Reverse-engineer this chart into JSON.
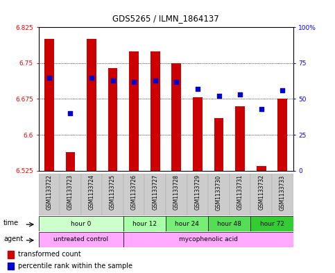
{
  "title": "GDS5265 / ILMN_1864137",
  "samples": [
    "GSM1133722",
    "GSM1133723",
    "GSM1133724",
    "GSM1133725",
    "GSM1133726",
    "GSM1133727",
    "GSM1133728",
    "GSM1133729",
    "GSM1133730",
    "GSM1133731",
    "GSM1133732",
    "GSM1133733"
  ],
  "bar_values": [
    6.8,
    6.563,
    6.8,
    6.74,
    6.775,
    6.775,
    6.75,
    6.678,
    6.635,
    6.66,
    6.535,
    6.675
  ],
  "percentile_values": [
    65,
    40,
    65,
    63,
    62,
    63,
    62,
    57,
    52,
    53,
    43,
    56
  ],
  "bar_base": 6.525,
  "ylim_min": 6.525,
  "ylim_max": 6.825,
  "bar_color": "#cc0000",
  "dot_color": "#0000cc",
  "left_yticks": [
    6.525,
    6.6,
    6.675,
    6.75,
    6.825
  ],
  "right_yticks": [
    0,
    25,
    50,
    75,
    100
  ],
  "time_groups": [
    {
      "label": "hour 0",
      "start": 0,
      "end": 4,
      "color": "#ccffcc"
    },
    {
      "label": "hour 12",
      "start": 4,
      "end": 6,
      "color": "#aaffaa"
    },
    {
      "label": "hour 24",
      "start": 6,
      "end": 8,
      "color": "#77ee77"
    },
    {
      "label": "hour 48",
      "start": 8,
      "end": 10,
      "color": "#55dd55"
    },
    {
      "label": "hour 72",
      "start": 10,
      "end": 12,
      "color": "#33cc33"
    }
  ],
  "agent_groups": [
    {
      "label": "untreated control",
      "start": 0,
      "end": 4,
      "color": "#ffaaff"
    },
    {
      "label": "mycophenolic acid",
      "start": 4,
      "end": 12,
      "color": "#ffaaff"
    }
  ],
  "background_color": "#ffffff"
}
